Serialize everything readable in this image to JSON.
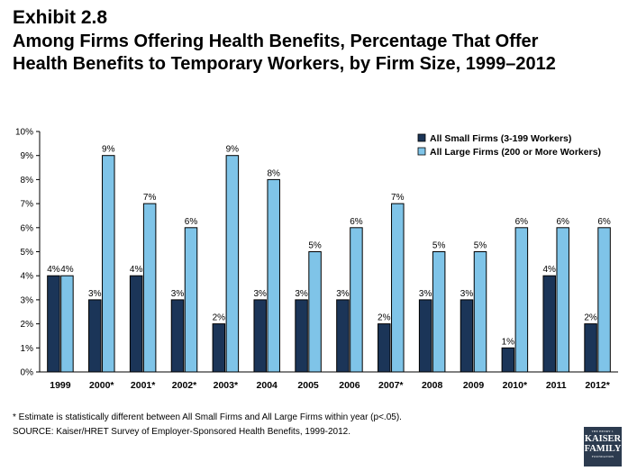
{
  "header": {
    "exhibit": "Exhibit 2.8",
    "title_line1": "Among Firms Offering Health Benefits, Percentage That Offer",
    "title_line2": "Health Benefits to Temporary Workers, by Firm Size, 1999–2012"
  },
  "chart_data": {
    "type": "bar",
    "categories": [
      "1999",
      "2000*",
      "2001*",
      "2002*",
      "2003*",
      "2004",
      "2005",
      "2006",
      "2007*",
      "2008",
      "2009",
      "2010*",
      "2011",
      "2012*"
    ],
    "series": [
      {
        "name": "All Small Firms (3-199 Workers)",
        "color": "#1b3558",
        "values": [
          4,
          3,
          4,
          3,
          2,
          3,
          3,
          3,
          2,
          3,
          3,
          1,
          4,
          2
        ]
      },
      {
        "name": "All Large Firms (200 or More Workers)",
        "color": "#7fc4e8",
        "values": [
          4,
          9,
          7,
          6,
          9,
          8,
          5,
          6,
          7,
          5,
          5,
          6,
          6,
          6
        ]
      }
    ],
    "ylim": [
      0,
      10
    ],
    "yticks": [
      0,
      1,
      2,
      3,
      4,
      5,
      6,
      7,
      8,
      9,
      10
    ],
    "ytick_format": "%",
    "value_label_format": "%",
    "legend_position": "top-right",
    "grid": false
  },
  "footnote": "* Estimate is statistically different between All Small Firms and All Large Firms within year (p<.05).",
  "source": "SOURCE:  Kaiser/HRET Survey of Employer-Sponsored Health Benefits, 1999-2012.",
  "logo": {
    "line1": "THE HENRY J.",
    "line2a": "KAISER",
    "line2b": "FAMILY",
    "line3": "FOUNDATION"
  }
}
